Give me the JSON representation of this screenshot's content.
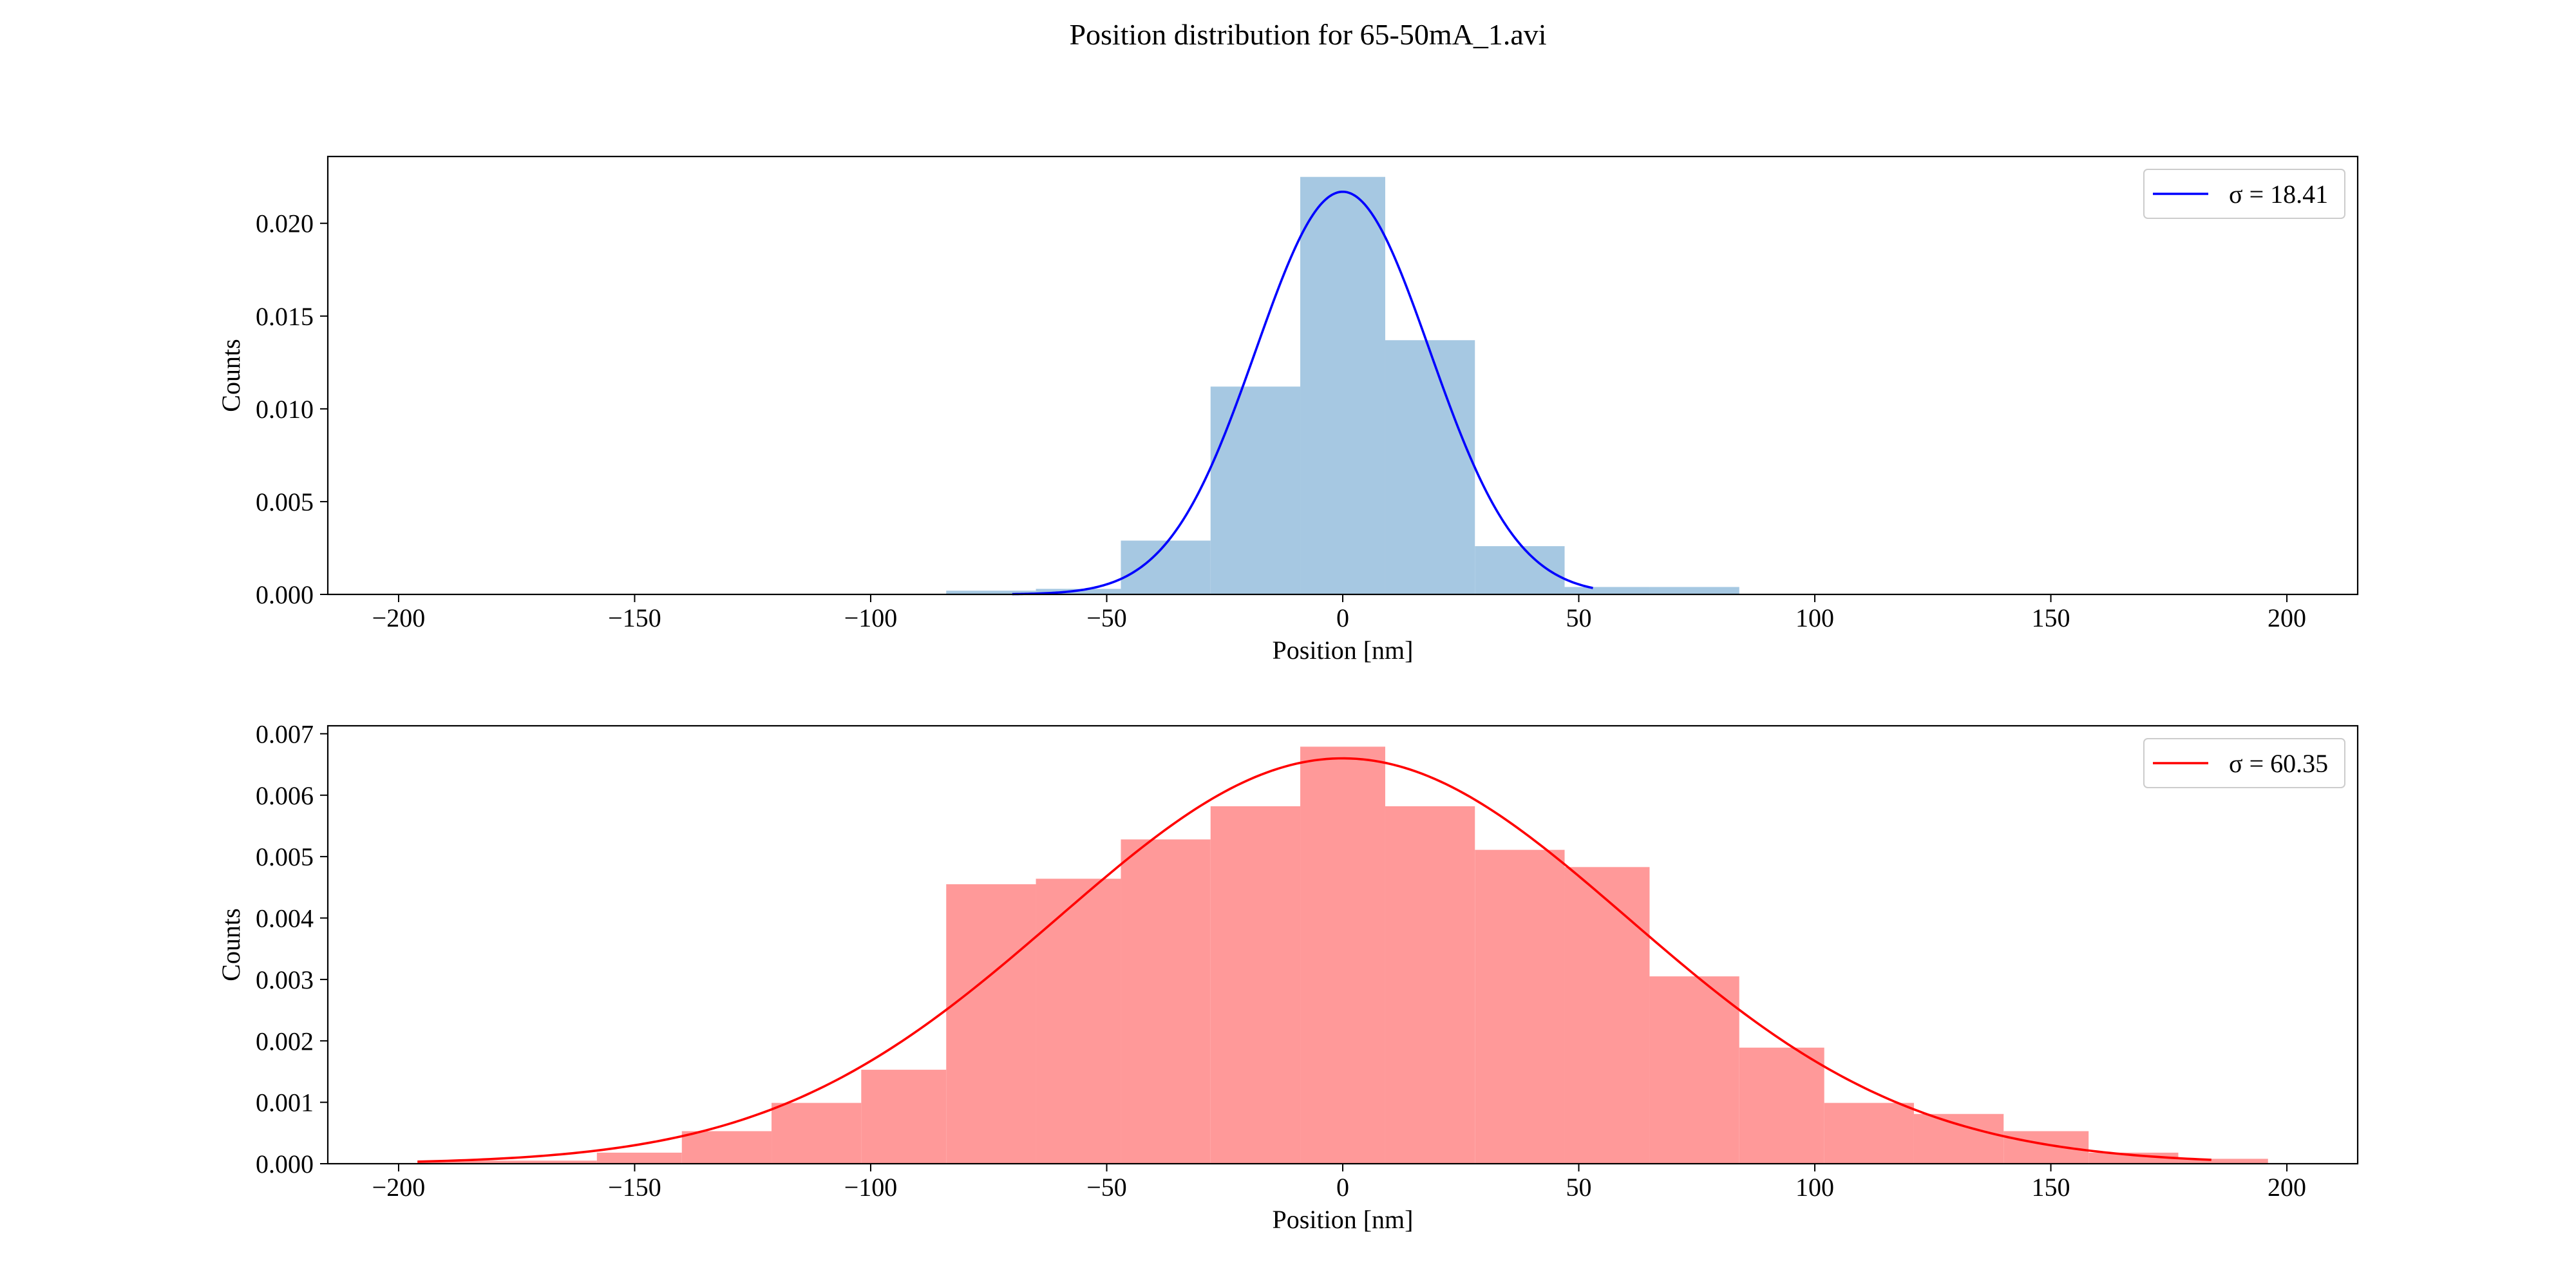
{
  "figure": {
    "title": "Position distribution for 65-50mA_1.avi"
  },
  "chart_data": [
    {
      "type": "bar",
      "hist_color": "#a6c8e2",
      "curve_color": "#0000ff",
      "xlabel": "Position [nm]",
      "ylabel": "Counts",
      "xlim": [
        -215,
        215
      ],
      "ylim": [
        0,
        0.0236
      ],
      "xticks": [
        -200,
        -150,
        -100,
        -50,
        0,
        50,
        100,
        150,
        200
      ],
      "yticks": [
        0.0,
        0.005,
        0.01,
        0.015,
        0.02
      ],
      "ytick_decimals": 3,
      "bins": [
        {
          "x0": -84,
          "x1": -65,
          "value": 0.0002
        },
        {
          "x0": -65,
          "x1": -47,
          "value": 0.0003
        },
        {
          "x0": -47,
          "x1": -28,
          "value": 0.0029
        },
        {
          "x0": -28,
          "x1": -9,
          "value": 0.0112
        },
        {
          "x0": -9,
          "x1": 9,
          "value": 0.0225
        },
        {
          "x0": 9,
          "x1": 28,
          "value": 0.0137
        },
        {
          "x0": 28,
          "x1": 47,
          "value": 0.0026
        },
        {
          "x0": 47,
          "x1": 65,
          "value": 0.0004
        },
        {
          "x0": 65,
          "x1": 84,
          "value": 0.0004
        }
      ],
      "fit": {
        "mu": 0,
        "sigma": 18.41,
        "peak": 0.0217,
        "x_range": [
          -70,
          53
        ]
      },
      "legend": {
        "label": "σ = 18.41",
        "position": "upper right"
      }
    },
    {
      "type": "bar",
      "hist_color": "#ff9999",
      "curve_color": "#ff0000",
      "xlabel": "Position [nm]",
      "ylabel": "Counts",
      "xlim": [
        -215,
        215
      ],
      "ylim": [
        0,
        0.00713
      ],
      "xticks": [
        -200,
        -150,
        -100,
        -50,
        0,
        50,
        100,
        150,
        200
      ],
      "yticks": [
        0.0,
        0.001,
        0.002,
        0.003,
        0.004,
        0.005,
        0.006,
        0.007
      ],
      "ytick_decimals": 3,
      "bins": [
        {
          "x0": -196,
          "x1": -177,
          "value": 5e-05
        },
        {
          "x0": -177,
          "x1": -158,
          "value": 5e-05
        },
        {
          "x0": -158,
          "x1": -140,
          "value": 0.00018
        },
        {
          "x0": -140,
          "x1": -121,
          "value": 0.00053
        },
        {
          "x0": -121,
          "x1": -102,
          "value": 0.00099
        },
        {
          "x0": -102,
          "x1": -84,
          "value": 0.00153
        },
        {
          "x0": -84,
          "x1": -65,
          "value": 0.00455
        },
        {
          "x0": -65,
          "x1": -47,
          "value": 0.00464
        },
        {
          "x0": -47,
          "x1": -28,
          "value": 0.00528
        },
        {
          "x0": -28,
          "x1": -9,
          "value": 0.00582
        },
        {
          "x0": -9,
          "x1": 9,
          "value": 0.00679
        },
        {
          "x0": 9,
          "x1": 28,
          "value": 0.00582
        },
        {
          "x0": 28,
          "x1": 47,
          "value": 0.00511
        },
        {
          "x0": 47,
          "x1": 65,
          "value": 0.00483
        },
        {
          "x0": 65,
          "x1": 84,
          "value": 0.00305
        },
        {
          "x0": 84,
          "x1": 102,
          "value": 0.00189
        },
        {
          "x0": 102,
          "x1": 121,
          "value": 0.00099
        },
        {
          "x0": 121,
          "x1": 140,
          "value": 0.00081
        },
        {
          "x0": 140,
          "x1": 158,
          "value": 0.00053
        },
        {
          "x0": 158,
          "x1": 177,
          "value": 0.00018
        },
        {
          "x0": 177,
          "x1": 196,
          "value": 8e-05
        }
      ],
      "fit": {
        "mu": 0,
        "sigma": 60.35,
        "peak": 0.0066,
        "x_range": [
          -196,
          184
        ]
      },
      "legend": {
        "label": "σ = 60.35",
        "position": "upper right"
      }
    }
  ]
}
